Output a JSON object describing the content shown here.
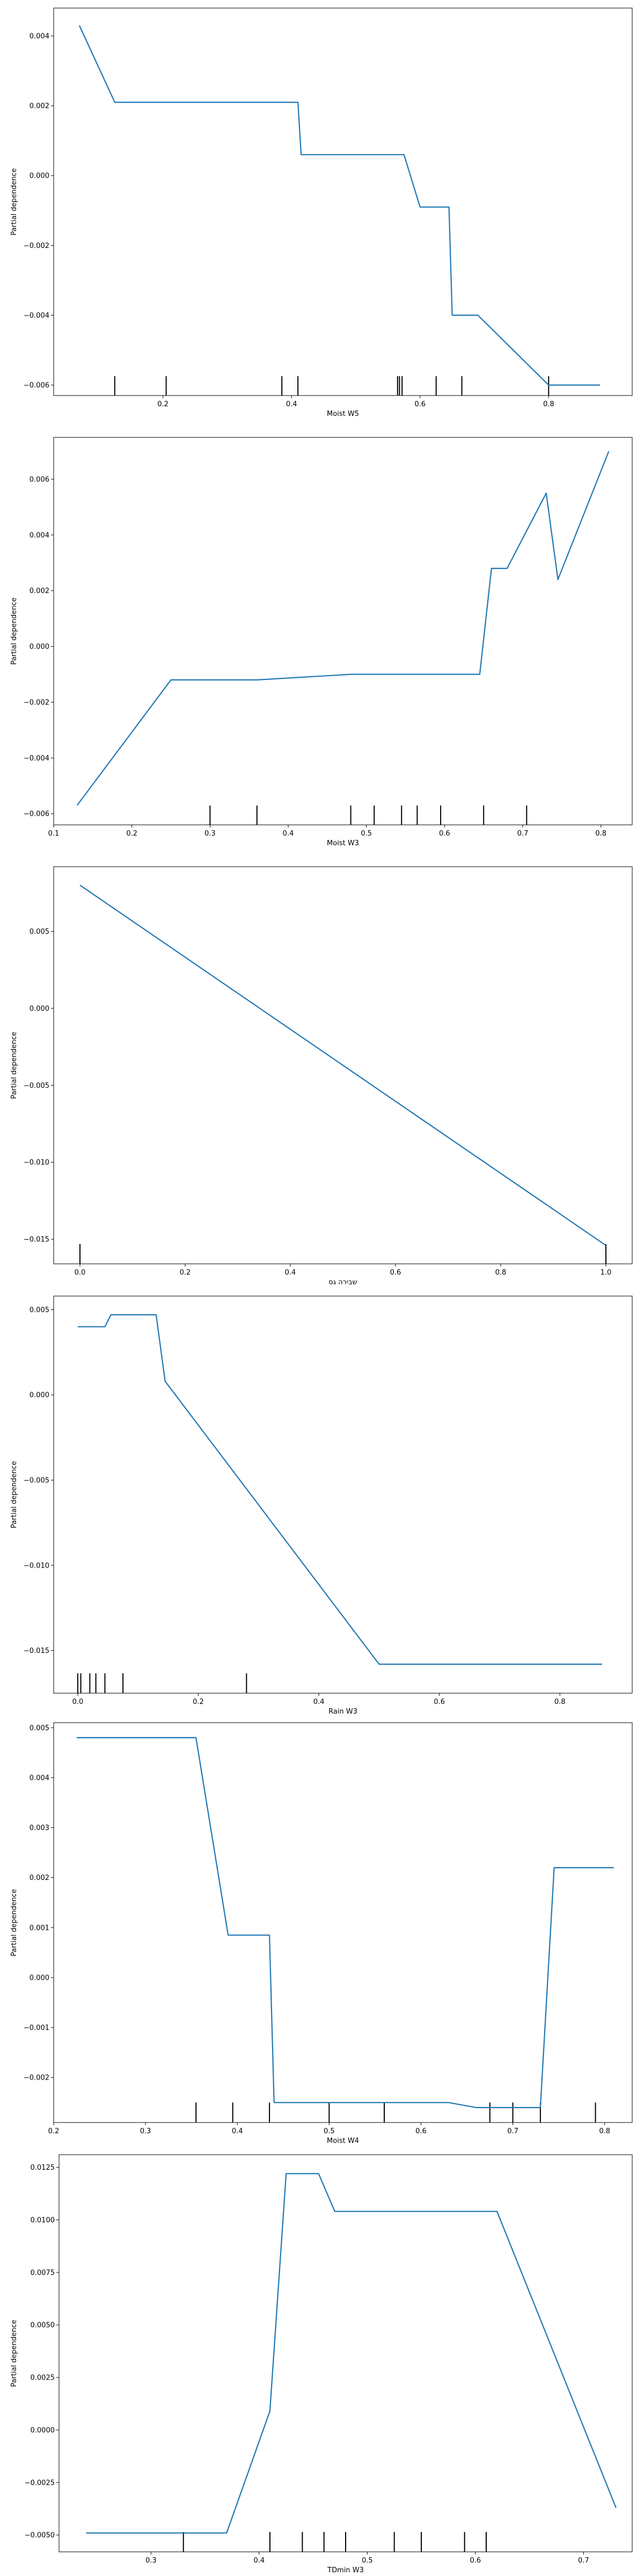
{
  "figure": {
    "line_color": "#1f77b4",
    "rug_color": "#000000",
    "axis_color": "#000000",
    "background": "#ffffff"
  },
  "chart_data": [
    {
      "type": "line",
      "xlabel": "Moist W5",
      "ylabel": "Partial dependence",
      "xlim": [
        0.03,
        0.93
      ],
      "ylim": [
        -0.0063,
        0.0048
      ],
      "xticks": [
        0.2,
        0.4,
        0.6,
        0.8
      ],
      "xtick_labels": [
        "0.2",
        "0.4",
        "0.6",
        "0.8"
      ],
      "yticks": [
        -0.006,
        -0.004,
        -0.002,
        0.0,
        0.002,
        0.004
      ],
      "ytick_labels": [
        "−0.006",
        "−0.004",
        "−0.002",
        "0.000",
        "0.002",
        "0.004"
      ],
      "x": [
        0.07,
        0.125,
        0.41,
        0.415,
        0.575,
        0.6,
        0.645,
        0.65,
        0.69,
        0.8,
        0.805,
        0.88
      ],
      "y": [
        0.0043,
        0.0021,
        0.0021,
        0.0006,
        0.0006,
        -0.0009,
        -0.0009,
        -0.004,
        -0.004,
        -0.006,
        -0.006,
        -0.006
      ],
      "deciles": [
        0.125,
        0.205,
        0.385,
        0.41,
        0.565,
        0.568,
        0.572,
        0.625,
        0.665,
        0.8
      ]
    },
    {
      "type": "line",
      "xlabel": "Moist W3",
      "ylabel": "Partial dependence",
      "xlim": [
        0.1,
        0.84
      ],
      "ylim": [
        -0.0064,
        0.0075
      ],
      "xticks": [
        0.1,
        0.2,
        0.3,
        0.4,
        0.5,
        0.6,
        0.7,
        0.8
      ],
      "xtick_labels": [
        "0.1",
        "0.2",
        "0.3",
        "0.4",
        "0.5",
        "0.6",
        "0.7",
        "0.8"
      ],
      "yticks": [
        -0.006,
        -0.004,
        -0.002,
        0.0,
        0.002,
        0.004,
        0.006
      ],
      "ytick_labels": [
        "−0.006",
        "−0.004",
        "−0.002",
        "0.000",
        "0.002",
        "0.004",
        "0.006"
      ],
      "x": [
        0.13,
        0.25,
        0.36,
        0.48,
        0.645,
        0.66,
        0.68,
        0.73,
        0.745,
        0.81
      ],
      "y": [
        -0.0057,
        -0.0012,
        -0.0012,
        -0.001,
        -0.001,
        0.0028,
        0.0028,
        0.0055,
        0.0024,
        0.007
      ],
      "deciles": [
        0.3,
        0.36,
        0.48,
        0.51,
        0.545,
        0.565,
        0.595,
        0.65,
        0.705
      ]
    },
    {
      "type": "line",
      "xlabel": "שבירה גס",
      "ylabel": "Partial dependence",
      "xlim": [
        -0.05,
        1.05
      ],
      "ylim": [
        -0.0166,
        0.0092
      ],
      "xticks": [
        0.0,
        0.2,
        0.4,
        0.6,
        0.8,
        1.0
      ],
      "xtick_labels": [
        "0.0",
        "0.2",
        "0.4",
        "0.6",
        "0.8",
        "1.0"
      ],
      "yticks": [
        -0.015,
        -0.01,
        -0.005,
        0.0,
        0.005
      ],
      "ytick_labels": [
        "−0.015",
        "−0.010",
        "−0.005",
        "0.000",
        "0.005"
      ],
      "x": [
        0.0,
        1.0
      ],
      "y": [
        0.008,
        -0.0154
      ],
      "deciles": [
        0.0,
        1.0
      ]
    },
    {
      "type": "line",
      "xlabel": "Rain W3",
      "ylabel": "Partial dependence",
      "xlim": [
        -0.04,
        0.92
      ],
      "ylim": [
        -0.0175,
        0.0058
      ],
      "xticks": [
        0.0,
        0.2,
        0.4,
        0.6,
        0.8
      ],
      "xtick_labels": [
        "0.0",
        "0.2",
        "0.4",
        "0.6",
        "0.8"
      ],
      "yticks": [
        -0.015,
        -0.01,
        -0.005,
        0.0,
        0.005
      ],
      "ytick_labels": [
        "−0.015",
        "−0.010",
        "−0.005",
        "0.000",
        "0.005"
      ],
      "x": [
        0.0,
        0.045,
        0.055,
        0.13,
        0.145,
        0.5,
        0.87
      ],
      "y": [
        0.004,
        0.004,
        0.0047,
        0.0047,
        0.0008,
        -0.0158,
        -0.0158
      ],
      "deciles": [
        0.0,
        0.005,
        0.02,
        0.03,
        0.045,
        0.075,
        0.28
      ]
    },
    {
      "type": "line",
      "xlabel": "Moist W4",
      "ylabel": "Partial dependence",
      "xlim": [
        0.2,
        0.83
      ],
      "ylim": [
        -0.0029,
        0.0051
      ],
      "xticks": [
        0.2,
        0.3,
        0.4,
        0.5,
        0.6,
        0.7,
        0.8
      ],
      "xtick_labels": [
        "0.2",
        "0.3",
        "0.4",
        "0.5",
        "0.6",
        "0.7",
        "0.8"
      ],
      "yticks": [
        -0.002,
        -0.001,
        0.0,
        0.001,
        0.002,
        0.003,
        0.004,
        0.005
      ],
      "ytick_labels": [
        "−0.002",
        "−0.001",
        "0.000",
        "0.001",
        "0.002",
        "0.003",
        "0.004",
        "0.005"
      ],
      "x": [
        0.225,
        0.355,
        0.39,
        0.435,
        0.44,
        0.63,
        0.66,
        0.73,
        0.745,
        0.81
      ],
      "y": [
        0.0048,
        0.0048,
        0.00085,
        0.00085,
        -0.0025,
        -0.0025,
        -0.0026,
        -0.0026,
        0.0022,
        0.0022
      ],
      "deciles": [
        0.355,
        0.395,
        0.435,
        0.5,
        0.56,
        0.675,
        0.7,
        0.73,
        0.79
      ]
    },
    {
      "type": "line",
      "xlabel": "TDmin W3",
      "ylabel": "Partial dependence",
      "xlim": [
        0.215,
        0.745
      ],
      "ylim": [
        -0.0058,
        0.0131
      ],
      "xticks": [
        0.3,
        0.4,
        0.5,
        0.6,
        0.7
      ],
      "xtick_labels": [
        "0.3",
        "0.4",
        "0.5",
        "0.6",
        "0.7"
      ],
      "yticks": [
        -0.005,
        -0.0025,
        0.0,
        0.0025,
        0.005,
        0.0075,
        0.01,
        0.0125
      ],
      "ytick_labels": [
        "−0.0050",
        "−0.0025",
        "0.0000",
        "0.0025",
        "0.0050",
        "0.0075",
        "0.0100",
        "0.0125"
      ],
      "x": [
        0.24,
        0.37,
        0.41,
        0.425,
        0.455,
        0.47,
        0.62,
        0.73
      ],
      "y": [
        -0.0049,
        -0.0049,
        0.0009,
        0.0122,
        0.0122,
        0.0104,
        0.0104,
        -0.0037
      ],
      "deciles": [
        0.33,
        0.41,
        0.44,
        0.46,
        0.48,
        0.525,
        0.55,
        0.59,
        0.61
      ]
    }
  ]
}
